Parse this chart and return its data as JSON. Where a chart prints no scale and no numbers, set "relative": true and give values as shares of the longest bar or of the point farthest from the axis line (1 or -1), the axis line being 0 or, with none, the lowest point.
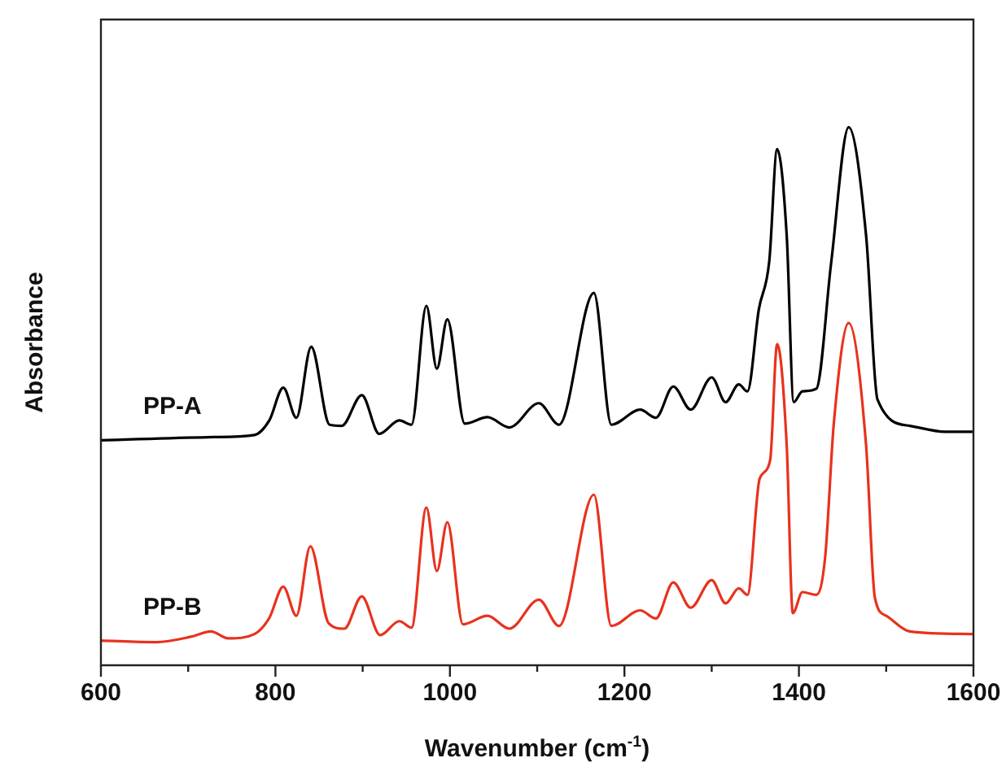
{
  "chart_data": {
    "type": "line",
    "xlabel": "Wavenumber (cm$^{-1}$)",
    "ylabel": "Absorbance",
    "relative": true,
    "xlim": [
      600,
      1600
    ],
    "xticks": [
      600,
      {
        "value": 700,
        "label": null
      },
      800,
      {
        "value": 900,
        "label": null
      },
      1000,
      {
        "value": 1100,
        "label": null
      },
      1200,
      {
        "value": 1300,
        "label": null
      },
      1400,
      {
        "value": 1500,
        "label": null
      },
      1600
    ],
    "grid": false,
    "legend": false,
    "marker": "none",
    "line_style": "solid",
    "series": [
      {
        "name": "PP-A",
        "color": "#000000",
        "x": [
          600,
          730,
          776,
          793,
          809,
          824,
          841,
          862,
          876,
          899,
          919,
          942,
          956,
          973,
          985,
          997,
          1017,
          1043,
          1068,
          1102,
          1125,
          1165,
          1185,
          1218,
          1236,
          1256,
          1276,
          1300,
          1316,
          1331,
          1341,
          1354,
          1366,
          1375,
          1386,
          1394,
          1404,
          1420,
          1437,
          1457,
          1477,
          1490,
          1527,
          1567,
          1599
        ],
        "values": [
          0.418,
          0.424,
          0.428,
          0.455,
          0.516,
          0.46,
          0.592,
          0.447,
          0.445,
          0.502,
          0.43,
          0.455,
          0.447,
          0.668,
          0.551,
          0.643,
          0.449,
          0.461,
          0.442,
          0.487,
          0.447,
          0.692,
          0.447,
          0.475,
          0.46,
          0.518,
          0.475,
          0.535,
          0.489,
          0.522,
          0.509,
          0.661,
          0.751,
          0.959,
          0.798,
          0.489,
          0.509,
          0.514,
          0.749,
          1.0,
          0.798,
          0.494,
          0.445,
          0.434,
          0.434
        ]
      },
      {
        "name": "PP-B",
        "color": "#e8321e",
        "x": [
          600,
          663,
          703,
          726,
          746,
          776,
          793,
          809,
          824,
          840,
          861,
          879,
          899,
          920,
          942,
          956,
          973,
          985,
          997,
          1015,
          1043,
          1068,
          1102,
          1125,
          1165,
          1185,
          1218,
          1236,
          1256,
          1276,
          1300,
          1316,
          1331,
          1341,
          1355,
          1367,
          1375,
          1386,
          1393,
          1404,
          1420,
          1430,
          1440,
          1457,
          1477,
          1487,
          1500,
          1527,
          1599
        ],
        "values": [
          0.046,
          0.043,
          0.053,
          0.063,
          0.05,
          0.058,
          0.088,
          0.146,
          0.092,
          0.221,
          0.078,
          0.068,
          0.128,
          0.056,
          0.082,
          0.07,
          0.293,
          0.175,
          0.266,
          0.076,
          0.092,
          0.068,
          0.122,
          0.073,
          0.317,
          0.073,
          0.102,
          0.087,
          0.154,
          0.107,
          0.158,
          0.115,
          0.143,
          0.131,
          0.347,
          0.381,
          0.597,
          0.408,
          0.097,
          0.136,
          0.131,
          0.2,
          0.45,
          0.636,
          0.408,
          0.126,
          0.092,
          0.063,
          0.058
        ]
      }
    ]
  }
}
